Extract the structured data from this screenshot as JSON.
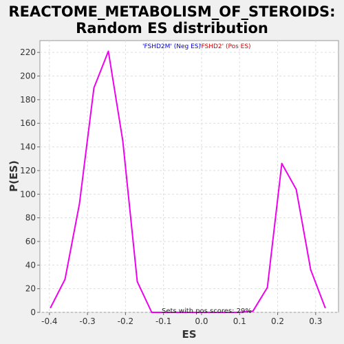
{
  "chart_data": {
    "type": "line",
    "title": "REACTOME_METABOLISM_OF_STEROIDS:",
    "subtitle": "Random ES distribution",
    "xlabel": "ES",
    "ylabel": "P(ES)",
    "xlim": [
      -0.425,
      0.36
    ],
    "ylim": [
      0,
      230
    ],
    "xticks": [
      -0.4,
      -0.3,
      -0.2,
      -0.1,
      0.0,
      0.1,
      0.2,
      0.3
    ],
    "xtick_labels": [
      "-0.4",
      "-0.3",
      "-0.2",
      "-0.1",
      "0.0",
      "0.1",
      "0.2",
      "0.3"
    ],
    "yticks": [
      0,
      20,
      40,
      60,
      80,
      100,
      120,
      140,
      160,
      180,
      200,
      220
    ],
    "yticks_labels": [
      "0",
      "20",
      "40",
      "60",
      "80",
      "100",
      "120",
      "140",
      "160",
      "180",
      "200",
      "220"
    ],
    "grid": true,
    "series": [
      {
        "color": "#ee00ee",
        "x": [
          -0.397,
          -0.359,
          -0.321,
          -0.283,
          -0.245,
          -0.207,
          -0.169,
          -0.131,
          -0.093,
          -0.055,
          -0.017,
          0.021,
          0.059,
          0.097,
          0.135,
          0.173,
          0.211,
          0.249,
          0.287,
          0.325
        ],
        "y": [
          4,
          28,
          92,
          190,
          221,
          145,
          26,
          0,
          0,
          0,
          0,
          0,
          0,
          0,
          1,
          21,
          126,
          104,
          36,
          4
        ]
      }
    ],
    "legend": {
      "neg_text": "'FSHD2M' (Neg ES)",
      "neg_color": "#0000cc",
      "pos_text": "'FSHD2' (Pos ES)",
      "pos_color": "#cc0000"
    },
    "annotation": "Sets with pos scores: 29%"
  }
}
